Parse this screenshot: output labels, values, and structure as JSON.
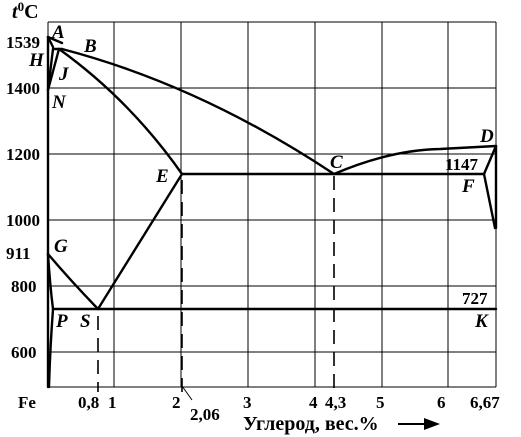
{
  "axes": {
    "y_label_main": "t",
    "y_label_sup": "0",
    "y_label_unit": "C",
    "x_label": "Углерод, вес.%",
    "x_origin_label": "Fe",
    "x_ticks": [
      {
        "label": "0,8"
      },
      {
        "label": "1"
      },
      {
        "label": "2"
      },
      {
        "label": "2,06"
      },
      {
        "label": "3"
      },
      {
        "label": "4"
      },
      {
        "label": "4,3"
      },
      {
        "label": "5"
      },
      {
        "label": "6"
      },
      {
        "label": "6,67"
      }
    ],
    "y_ticks": [
      {
        "label": "1539"
      },
      {
        "label": "1400"
      },
      {
        "label": "1200"
      },
      {
        "label": "1000"
      },
      {
        "label": "911"
      },
      {
        "label": "800"
      },
      {
        "label": "600"
      }
    ]
  },
  "points": {
    "A": "A",
    "B": "B",
    "H": "H",
    "J": "J",
    "N": "N",
    "C": "C",
    "D": "D",
    "E": "E",
    "F": "F",
    "G": "G",
    "P": "P",
    "S": "S",
    "K": "K"
  },
  "values": {
    "t_1147": "1147",
    "t_727": "727"
  },
  "chart_data": {
    "type": "phase-diagram",
    "x_unit": "% C",
    "y_unit": "°C",
    "xlim": [
      0,
      6.67
    ],
    "ylim": [
      500,
      1600
    ],
    "grid": true,
    "key_points": [
      {
        "name": "A",
        "x": 0,
        "y": 1539
      },
      {
        "name": "H",
        "x": 0.1,
        "y": 1499
      },
      {
        "name": "J",
        "x": 0.16,
        "y": 1499
      },
      {
        "name": "B",
        "x": 0.51,
        "y": 1499
      },
      {
        "name": "N",
        "x": 0,
        "y": 1392
      },
      {
        "name": "E",
        "x": 2.06,
        "y": 1147
      },
      {
        "name": "C",
        "x": 4.3,
        "y": 1147
      },
      {
        "name": "F",
        "x": 6.67,
        "y": 1147
      },
      {
        "name": "D",
        "x": 6.67,
        "y": 1250
      },
      {
        "name": "G",
        "x": 0,
        "y": 911
      },
      {
        "name": "P",
        "x": 0.02,
        "y": 727
      },
      {
        "name": "S",
        "x": 0.8,
        "y": 727
      },
      {
        "name": "K",
        "x": 6.67,
        "y": 727
      }
    ],
    "isotherms": [
      1499,
      1147,
      727
    ],
    "vertical_markers": [
      0.8,
      2.06,
      4.3
    ]
  }
}
